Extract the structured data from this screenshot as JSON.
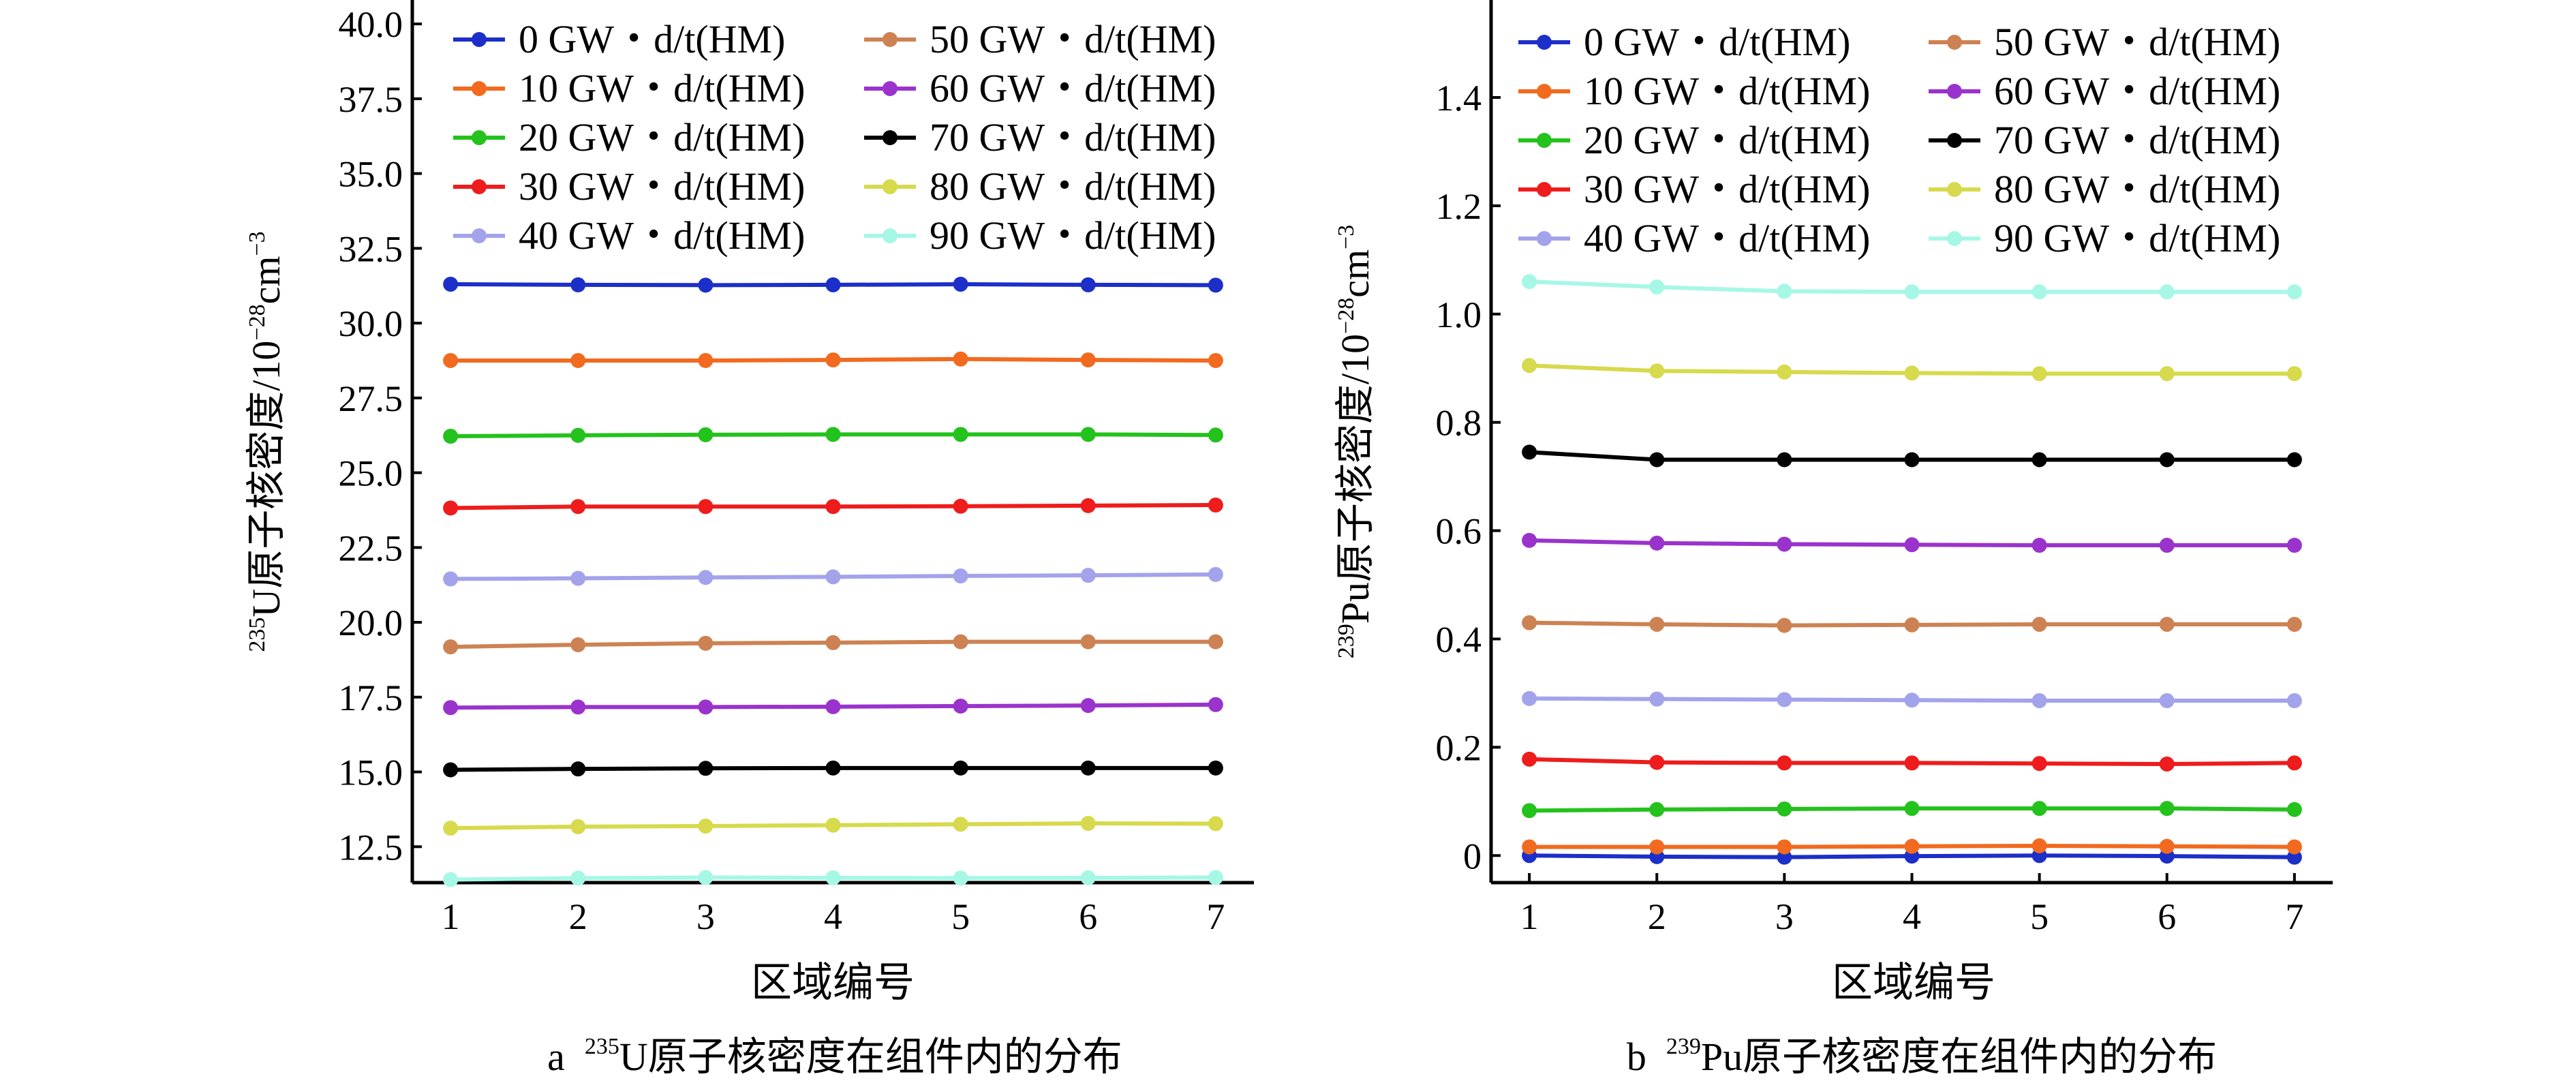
{
  "chart_data": [
    {
      "type": "line",
      "panel_label": "a",
      "caption_sup": "235",
      "caption_rest": "U原子核密度在组件内的分布",
      "xlabel": "区域编号",
      "ylabel_sup": "235",
      "ylabel_main": "U原子核密度/10",
      "ylabel_exp": "−28",
      "ylabel_unit": "cm",
      "ylabel_unit_exp": "−3",
      "x": [
        1,
        2,
        3,
        4,
        5,
        6,
        7
      ],
      "x_ticks": [
        "1",
        "2",
        "3",
        "4",
        "5",
        "6",
        "7"
      ],
      "xlim": [
        0.7,
        7.3
      ],
      "ylim": [
        11.3,
        40.8
      ],
      "y_ticks": [
        "12.5",
        "15.0",
        "17.5",
        "20.0",
        "22.5",
        "25.0",
        "27.5",
        "30.0",
        "32.5",
        "35.0",
        "37.5",
        "40.0"
      ],
      "y_tick_values": [
        12.5,
        15.0,
        17.5,
        20.0,
        22.5,
        25.0,
        27.5,
        30.0,
        32.5,
        35.0,
        37.5,
        40.0
      ],
      "legend_placement": "top",
      "grid": false,
      "series": [
        {
          "name": "0 GW・d/t(HM)",
          "color": "#1c2fc8",
          "values": [
            31.3,
            31.28,
            31.27,
            31.28,
            31.3,
            31.28,
            31.27
          ]
        },
        {
          "name": "10 GW・d/t(HM)",
          "color": "#f26a1f",
          "values": [
            28.75,
            28.75,
            28.75,
            28.77,
            28.8,
            28.77,
            28.75
          ]
        },
        {
          "name": "20 GW・d/t(HM)",
          "color": "#24c21c",
          "values": [
            26.22,
            26.25,
            26.27,
            26.28,
            26.28,
            26.28,
            26.26
          ]
        },
        {
          "name": "30 GW・d/t(HM)",
          "color": "#ee1c1c",
          "values": [
            23.82,
            23.87,
            23.87,
            23.87,
            23.88,
            23.9,
            23.92
          ]
        },
        {
          "name": "40 GW・d/t(HM)",
          "color": "#a3a3ec",
          "values": [
            21.45,
            21.47,
            21.5,
            21.52,
            21.55,
            21.57,
            21.6
          ]
        },
        {
          "name": "50 GW・d/t(HM)",
          "color": "#cd8253",
          "values": [
            19.18,
            19.25,
            19.3,
            19.32,
            19.35,
            19.35,
            19.35
          ]
        },
        {
          "name": "60 GW・d/t(HM)",
          "color": "#9a33cc",
          "values": [
            17.15,
            17.17,
            17.17,
            17.18,
            17.2,
            17.22,
            17.25
          ]
        },
        {
          "name": "70 GW・d/t(HM)",
          "color": "#000000",
          "values": [
            15.07,
            15.1,
            15.12,
            15.13,
            15.13,
            15.13,
            15.13
          ]
        },
        {
          "name": "80 GW・d/t(HM)",
          "color": "#d6da4c",
          "values": [
            13.12,
            13.17,
            13.19,
            13.22,
            13.25,
            13.28,
            13.27
          ]
        },
        {
          "name": "90 GW・d/t(HM)",
          "color": "#a6f7e6",
          "values": [
            11.4,
            11.45,
            11.47,
            11.46,
            11.45,
            11.46,
            11.47
          ]
        }
      ]
    },
    {
      "type": "line",
      "panel_label": "b",
      "caption_sup": "239",
      "caption_rest": "Pu原子核密度在组件内的分布",
      "xlabel": "区域编号",
      "ylabel_sup": "239",
      "ylabel_main": "Pu原子核密度/10",
      "ylabel_exp": "−28",
      "ylabel_unit": "cm",
      "ylabel_unit_exp": "−3",
      "x": [
        1,
        2,
        3,
        4,
        5,
        6,
        7
      ],
      "x_ticks": [
        "1",
        "2",
        "3",
        "4",
        "5",
        "6",
        "7"
      ],
      "xlim": [
        0.7,
        7.3
      ],
      "ylim": [
        -0.05,
        1.58
      ],
      "y_ticks": [
        "0",
        "0.2",
        "0.4",
        "0.6",
        "0.8",
        "1.0",
        "1.2",
        "1.4"
      ],
      "y_tick_values": [
        0,
        0.2,
        0.4,
        0.6,
        0.8,
        1.0,
        1.2,
        1.4
      ],
      "legend_placement": "top",
      "grid": false,
      "series": [
        {
          "name": "0 GW・d/t(HM)",
          "color": "#1c2fc8",
          "values": [
            0.0,
            -0.002,
            -0.003,
            -0.001,
            0.0,
            -0.001,
            -0.003
          ]
        },
        {
          "name": "10 GW・d/t(HM)",
          "color": "#f26a1f",
          "values": [
            0.016,
            0.016,
            0.016,
            0.017,
            0.018,
            0.017,
            0.016
          ]
        },
        {
          "name": "20 GW・d/t(HM)",
          "color": "#24c21c",
          "values": [
            0.083,
            0.085,
            0.086,
            0.087,
            0.087,
            0.087,
            0.085
          ]
        },
        {
          "name": "30 GW・d/t(HM)",
          "color": "#ee1c1c",
          "values": [
            0.178,
            0.172,
            0.171,
            0.171,
            0.17,
            0.169,
            0.171
          ]
        },
        {
          "name": "40 GW・d/t(HM)",
          "color": "#a3a3ec",
          "values": [
            0.29,
            0.289,
            0.288,
            0.287,
            0.286,
            0.286,
            0.286
          ]
        },
        {
          "name": "50 GW・d/t(HM)",
          "color": "#cd8253",
          "values": [
            0.43,
            0.427,
            0.425,
            0.426,
            0.427,
            0.427,
            0.427
          ]
        },
        {
          "name": "60 GW・d/t(HM)",
          "color": "#9a33cc",
          "values": [
            0.582,
            0.577,
            0.575,
            0.574,
            0.573,
            0.573,
            0.573
          ]
        },
        {
          "name": "70 GW・d/t(HM)",
          "color": "#000000",
          "values": [
            0.745,
            0.731,
            0.731,
            0.731,
            0.731,
            0.731,
            0.731
          ]
        },
        {
          "name": "80 GW・d/t(HM)",
          "color": "#d6da4c",
          "values": [
            0.905,
            0.895,
            0.893,
            0.891,
            0.89,
            0.89,
            0.89
          ]
        },
        {
          "name": "90 GW・d/t(HM)",
          "color": "#a6f7e6",
          "values": [
            1.06,
            1.05,
            1.042,
            1.041,
            1.041,
            1.041,
            1.041
          ]
        }
      ]
    }
  ]
}
